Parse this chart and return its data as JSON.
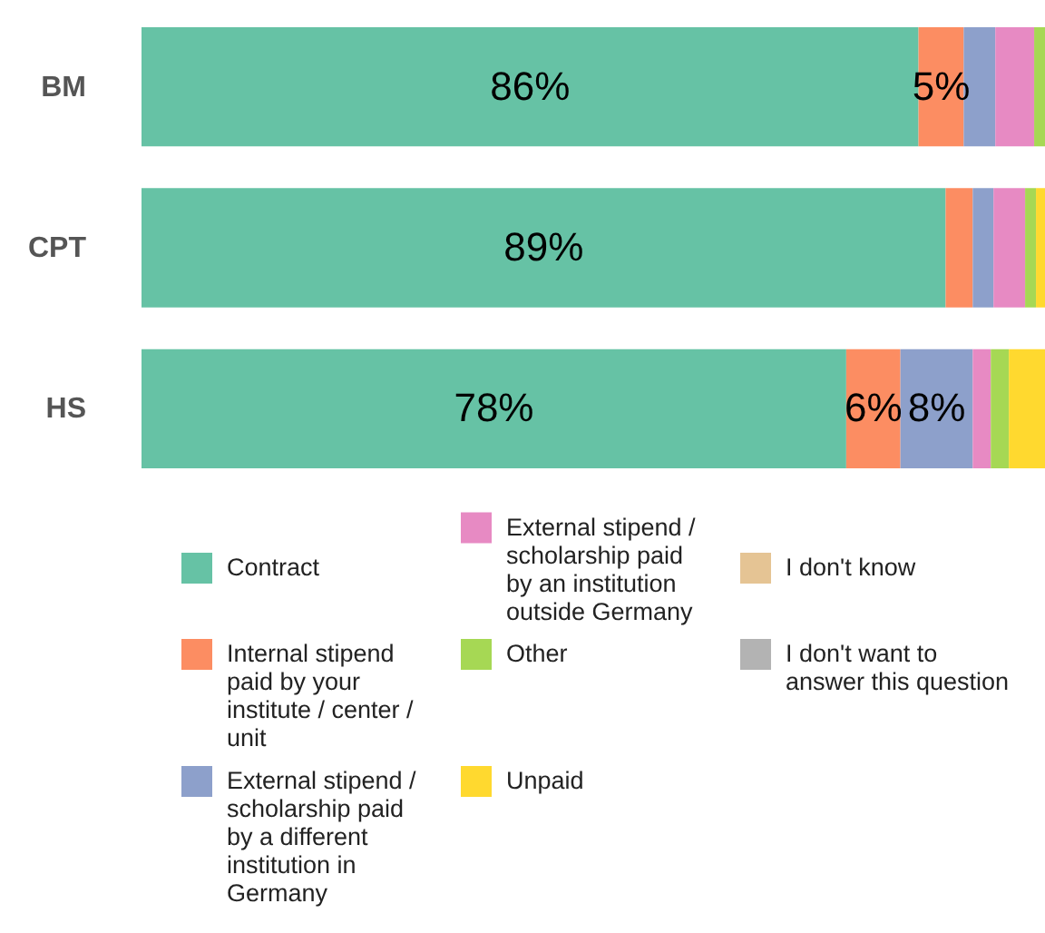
{
  "chart_data": {
    "type": "bar",
    "orientation": "horizontal",
    "stacked": true,
    "categories": [
      "BM",
      "CPT",
      "HS"
    ],
    "xlim": [
      0,
      100
    ],
    "tick_labels": "y",
    "legend": "bottom",
    "grid": false,
    "series": [
      {
        "name": "Contract",
        "color": "#66c2a5",
        "values": [
          86,
          89,
          78
        ],
        "value_labels": [
          "86%",
          "89%",
          "78%"
        ]
      },
      {
        "name": "Internal stipend paid by your institute / center / unit",
        "color": "#fc8d62",
        "values": [
          5,
          3,
          6
        ],
        "value_labels": [
          "5%",
          null,
          "6%"
        ]
      },
      {
        "name": "External stipend / scholarship paid by a different institution in Germany",
        "color": "#8da0cb",
        "values": [
          3.5,
          2.3,
          8
        ],
        "value_labels": [
          null,
          null,
          "8%"
        ]
      },
      {
        "name": "External stipend / scholarship paid by an institution outside Germany",
        "color": "#e78ac3",
        "values": [
          4.3,
          3.5,
          2
        ],
        "value_labels": [
          null,
          null,
          null
        ]
      },
      {
        "name": "Other",
        "color": "#a6d854",
        "values": [
          1.2,
          1.2,
          2
        ],
        "value_labels": [
          null,
          null,
          null
        ]
      },
      {
        "name": "Unpaid",
        "color": "#ffd92f",
        "values": [
          0,
          1,
          4
        ],
        "value_labels": [
          null,
          null,
          null
        ]
      },
      {
        "name": "I don't know",
        "color": "#e5c494",
        "values": [
          0,
          0,
          0
        ],
        "value_labels": [
          null,
          null,
          null
        ]
      },
      {
        "name": "I don't want to answer this question",
        "color": "#b3b3b3",
        "values": [
          0,
          0,
          0
        ],
        "value_labels": [
          null,
          null,
          null
        ]
      }
    ]
  }
}
